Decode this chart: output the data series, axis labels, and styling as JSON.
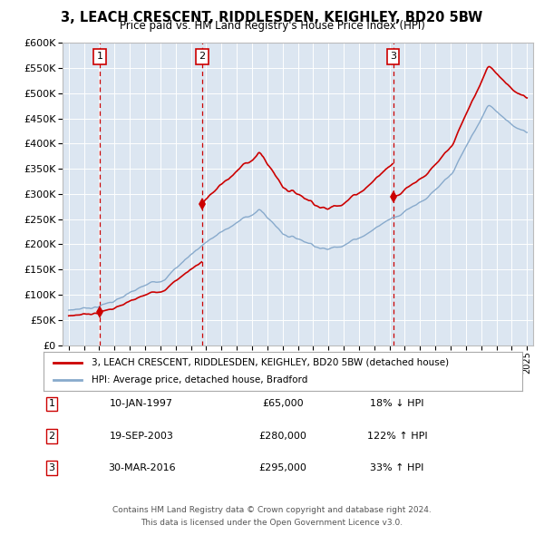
{
  "title": "3, LEACH CRESCENT, RIDDLESDEN, KEIGHLEY, BD20 5BW",
  "subtitle": "Price paid vs. HM Land Registry's House Price Index (HPI)",
  "transactions": [
    {
      "num": 1,
      "date_label": "10-JAN-1997",
      "price": 65000,
      "pct": "18% ↓ HPI",
      "year": 1997.03
    },
    {
      "num": 2,
      "date_label": "19-SEP-2003",
      "price": 280000,
      "pct": "122% ↑ HPI",
      "year": 2003.72
    },
    {
      "num": 3,
      "date_label": "30-MAR-2016",
      "price": 295000,
      "pct": "33% ↑ HPI",
      "year": 2016.24
    }
  ],
  "legend_line1": "3, LEACH CRESCENT, RIDDLESDEN, KEIGHLEY, BD20 5BW (detached house)",
  "legend_line2": "HPI: Average price, detached house, Bradford",
  "footer1": "Contains HM Land Registry data © Crown copyright and database right 2024.",
  "footer2": "This data is licensed under the Open Government Licence v3.0.",
  "sale_color": "#cc0000",
  "hpi_color": "#88aacc",
  "bg_color": "#dce6f1",
  "ylim_max": 600000,
  "ylim_min": 0,
  "xlim_min": 1994.6,
  "xlim_max": 2025.4
}
